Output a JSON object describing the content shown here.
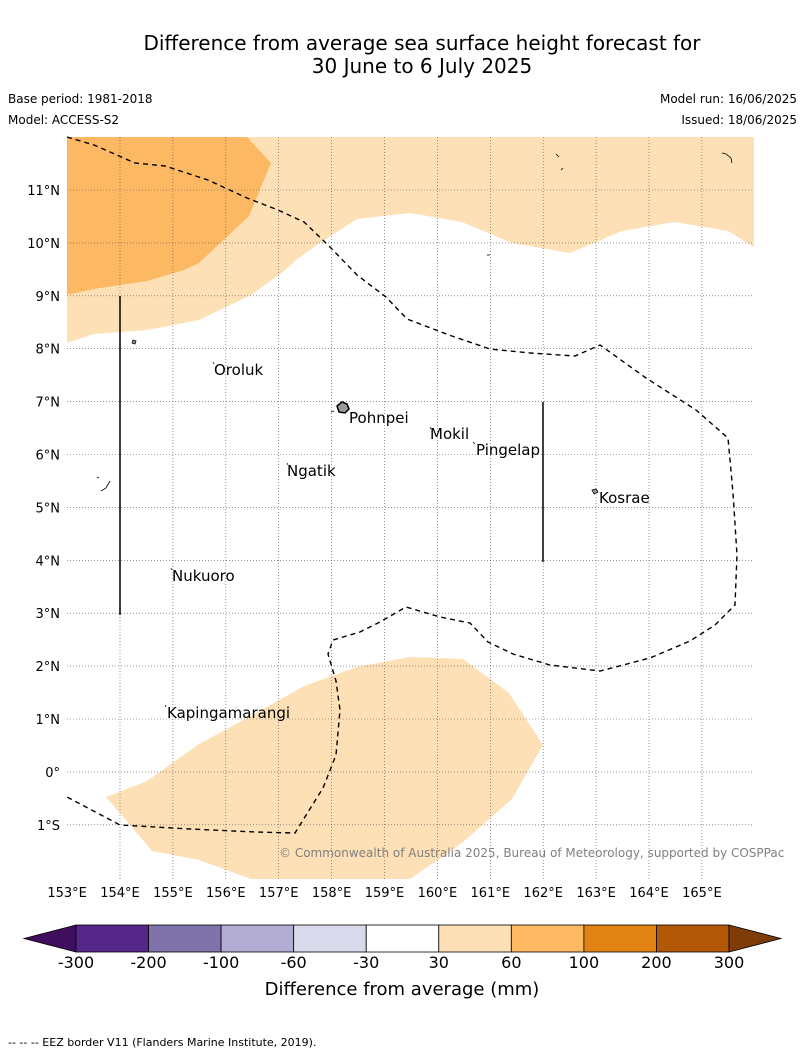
{
  "header": {
    "title_line1": "Difference from average sea surface height forecast for",
    "title_line2": "30 June to 6 July 2025",
    "base_period": "Base period: 1981-2018",
    "model": "Model: ACCESS-S2",
    "model_run": "Model run: 16/06/2025",
    "issued": "Issued: 18/06/2025"
  },
  "map": {
    "lat_labels": [
      "11°N",
      "10°N",
      "9°N",
      "8°N",
      "7°N",
      "6°N",
      "5°N",
      "4°N",
      "3°N",
      "2°N",
      "1°N",
      "0°",
      "1°S"
    ],
    "lon_labels": [
      "153°E",
      "154°E",
      "155°E",
      "156°E",
      "157°E",
      "158°E",
      "159°E",
      "160°E",
      "161°E",
      "162°E",
      "163°E",
      "164°E",
      "165°E"
    ],
    "places": [
      "Oroluk",
      "Pohnpei",
      "Mokil",
      "Pingelap",
      "Ngatik",
      "Kosrae",
      "Nukuoro",
      "Kapingamarangi"
    ],
    "copyright": "© Commonwealth of Australia 2025, Bureau of Meteorology, supported by COSPPac"
  },
  "colorbar": {
    "tick_labels": [
      "-300",
      "-200",
      "-100",
      "-60",
      "-30",
      "30",
      "60",
      "100",
      "200",
      "300"
    ],
    "colors": [
      "#3f0f5e",
      "#542788",
      "#8073ac",
      "#b2abd2",
      "#d8daeb",
      "#ffffff",
      "#fee0b6",
      "#fdb863",
      "#e08214",
      "#b35806",
      "#7f3b08"
    ],
    "title": "Difference from average (mm)"
  },
  "footnote": "--  --  -- EEZ border V11 (Flanders Marine Institute, 2019)."
}
